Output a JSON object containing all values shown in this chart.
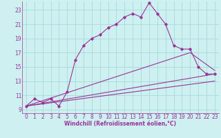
{
  "xlabel": "Windchill (Refroidissement éolien,°C)",
  "background_color": "#cef0f0",
  "grid_color": "#aadddd",
  "line_color": "#993399",
  "xlim": [
    -0.5,
    23.5
  ],
  "ylim": [
    8.5,
    24.2
  ],
  "xticks": [
    0,
    1,
    2,
    3,
    4,
    5,
    6,
    7,
    8,
    9,
    10,
    11,
    12,
    13,
    14,
    15,
    16,
    17,
    18,
    19,
    20,
    21,
    22,
    23
  ],
  "yticks": [
    9,
    11,
    13,
    15,
    17,
    19,
    21,
    23
  ],
  "series1_x": [
    0,
    1,
    2,
    3,
    4,
    5,
    6,
    7,
    8,
    9,
    10,
    11,
    12,
    13,
    14,
    15,
    16,
    17,
    18,
    19,
    20,
    21,
    22,
    23
  ],
  "series1_y": [
    9.5,
    10.5,
    10.0,
    10.5,
    9.5,
    11.5,
    16.0,
    18.0,
    19.0,
    19.5,
    20.5,
    21.0,
    22.0,
    22.5,
    22.0,
    24.0,
    22.5,
    21.0,
    18.0,
    17.5,
    17.5,
    15.0,
    14.0,
    14.0
  ],
  "series2_x": [
    0,
    23
  ],
  "series2_y": [
    9.5,
    14.0
  ],
  "series3_x": [
    0,
    20,
    23
  ],
  "series3_y": [
    9.5,
    17.0,
    14.5
  ],
  "series4_x": [
    0,
    23
  ],
  "series4_y": [
    9.5,
    13.0
  ],
  "xlabel_fontsize": 5.5,
  "tick_fontsize": 5.5
}
